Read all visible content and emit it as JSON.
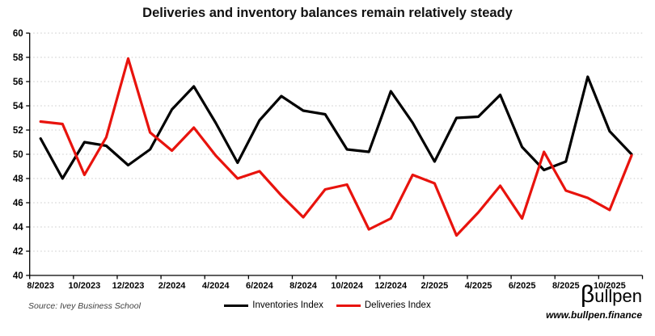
{
  "title": "Deliveries and inventory balances remain relatively steady",
  "source_note": "Source: Ivey Business School",
  "branding": {
    "logo_text": "βullpen",
    "website": "www.bullpen.finance"
  },
  "legend": [
    {
      "label": "Inventories Index",
      "color": "#000000"
    },
    {
      "label": "Deliveries Index",
      "color": "#e8130d"
    }
  ],
  "chart_data": {
    "type": "line",
    "x": [
      "8/2023",
      "9/2023",
      "10/2023",
      "11/2023",
      "12/2023",
      "1/2024",
      "2/2024",
      "3/2024",
      "4/2024",
      "5/2024",
      "6/2024",
      "7/2024",
      "8/2024",
      "9/2024",
      "10/2024",
      "11/2024",
      "12/2024",
      "1/2025",
      "2/2025",
      "3/2025",
      "4/2025",
      "5/2025",
      "6/2025",
      "7/2025",
      "8/2025",
      "9/2025",
      "10/2025",
      "11/2025"
    ],
    "x_tick_labels": [
      "8/2023",
      "10/2023",
      "12/2023",
      "2/2024",
      "4/2024",
      "6/2024",
      "8/2024",
      "10/2024",
      "12/2024",
      "2/2025",
      "4/2025",
      "6/2025",
      "8/2025",
      "10/2025"
    ],
    "series": [
      {
        "name": "Inventories Index",
        "color": "#000000",
        "values": [
          51.3,
          48.0,
          51.0,
          50.7,
          49.1,
          50.4,
          53.7,
          55.6,
          52.6,
          49.3,
          52.8,
          54.8,
          53.6,
          53.3,
          50.4,
          50.2,
          55.2,
          52.6,
          49.4,
          53.0,
          53.1,
          54.9,
          50.6,
          48.7,
          49.4,
          56.4,
          51.9,
          50.0
        ]
      },
      {
        "name": "Deliveries Index",
        "color": "#e8130d",
        "values": [
          52.7,
          52.5,
          48.3,
          51.4,
          57.9,
          51.8,
          50.3,
          52.2,
          49.9,
          48.0,
          48.6,
          46.6,
          44.8,
          47.1,
          47.5,
          43.8,
          44.7,
          48.3,
          47.6,
          43.3,
          45.2,
          47.4,
          44.7,
          50.2,
          47.0,
          46.4,
          45.4,
          49.9
        ]
      }
    ],
    "ylim": [
      40,
      60
    ],
    "ytick_step": 2,
    "grid": "horizontal-dotted",
    "legend_position": "bottom"
  }
}
